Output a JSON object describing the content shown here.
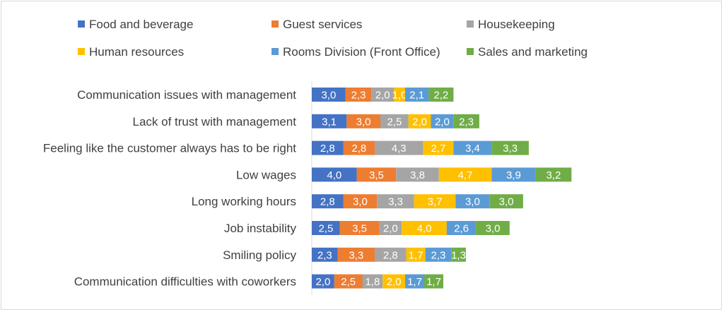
{
  "chart_data": {
    "type": "bar",
    "orientation": "horizontal",
    "stacked": true,
    "legend_position": "top",
    "grid": false,
    "title": "",
    "xlabel": "",
    "ylabel": "",
    "categories": [
      "Communication issues with management",
      "Lack of trust with management",
      "Feeling like the customer always has to be right",
      "Low wages",
      "Long working hours",
      "Job instability",
      "Smiling policy",
      "Communication difficulties with coworkers"
    ],
    "series": [
      {
        "name": "Food and beverage",
        "color": "#4472C4",
        "values": [
          3.0,
          3.1,
          2.8,
          4.0,
          2.8,
          2.5,
          2.3,
          2.0
        ],
        "labels": [
          "3,0",
          "3,1",
          "2,8",
          "4,0",
          "2,8",
          "2,5",
          "2,3",
          "2,0"
        ]
      },
      {
        "name": "Guest services",
        "color": "#ED7D31",
        "values": [
          2.3,
          3.0,
          2.8,
          3.5,
          3.0,
          3.5,
          3.3,
          2.5
        ],
        "labels": [
          "2,3",
          "3,0",
          "2,8",
          "3,5",
          "3,0",
          "3,5",
          "3,3",
          "2,5"
        ]
      },
      {
        "name": "Housekeeping",
        "color": "#A5A5A5",
        "values": [
          2.0,
          2.5,
          4.3,
          3.8,
          3.3,
          2.0,
          2.8,
          1.8
        ],
        "labels": [
          "2,0",
          "2,5",
          "4,3",
          "3,8",
          "3,3",
          "2,0",
          "2,8",
          "1,8"
        ]
      },
      {
        "name": "Human resources",
        "color": "#FFC000",
        "values": [
          1.0,
          2.0,
          2.7,
          4.7,
          3.7,
          4.0,
          1.7,
          2.0
        ],
        "labels": [
          "1,0",
          "2,0",
          "2,7",
          "4,7",
          "3,7",
          "4,0",
          "1,7",
          "2,0"
        ]
      },
      {
        "name": "Rooms Division (Front Office)",
        "color": "#5B9BD5",
        "values": [
          2.1,
          2.0,
          3.4,
          3.9,
          3.0,
          2.6,
          2.3,
          1.7
        ],
        "labels": [
          "2,1",
          "2,0",
          "3,4",
          "3,9",
          "3,0",
          "2,6",
          "2,3",
          "1,7"
        ]
      },
      {
        "name": "Sales and marketing",
        "color": "#70AD47",
        "values": [
          2.2,
          2.3,
          3.3,
          3.2,
          3.0,
          3.0,
          1.3,
          1.7
        ],
        "labels": [
          "2,2",
          "2,3",
          "3,3",
          "3,2",
          "3,0",
          "3,0",
          "1,3",
          "1,7"
        ]
      }
    ]
  }
}
